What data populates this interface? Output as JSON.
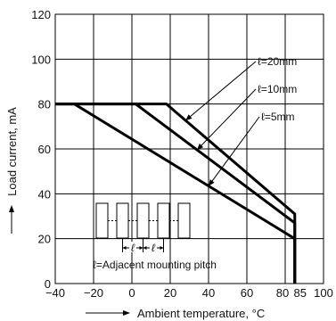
{
  "chart_data": {
    "type": "line",
    "title": "",
    "xlabel": "Ambient temperature, °C",
    "ylabel": "Load current, mA",
    "xlim": [
      -40,
      100
    ],
    "ylim": [
      0,
      120
    ],
    "xticks": [
      -40,
      -20,
      0,
      20,
      40,
      60,
      80,
      85,
      100
    ],
    "xtick_labels": [
      "−40",
      "−20",
      "0",
      "20",
      "40",
      "60",
      "80",
      "85",
      "100"
    ],
    "yticks": [
      0,
      20,
      40,
      60,
      80,
      100,
      120
    ],
    "grid": true,
    "series": [
      {
        "name": "ℓ=20mm",
        "points": [
          [
            -40,
            80
          ],
          [
            18,
            80
          ],
          [
            85,
            31
          ],
          [
            85,
            0
          ]
        ]
      },
      {
        "name": "ℓ=10mm",
        "points": [
          [
            -40,
            80
          ],
          [
            2,
            80
          ],
          [
            85,
            27
          ],
          [
            85,
            0
          ]
        ]
      },
      {
        "name": "ℓ=5mm",
        "points": [
          [
            -40,
            80
          ],
          [
            -30,
            80
          ],
          [
            85,
            20
          ],
          [
            85,
            0
          ]
        ]
      }
    ],
    "annotations": [
      {
        "text": "ℓ=20mm",
        "series": 0,
        "anchor_x": 28
      },
      {
        "text": "ℓ=10mm",
        "series": 1,
        "anchor_x": 34
      },
      {
        "text": "ℓ=5mm",
        "series": 2,
        "anchor_x": 40
      }
    ],
    "inset": {
      "pitch_label": "ℓ",
      "caption": "ℓ=Adjacent mounting pitch"
    }
  }
}
